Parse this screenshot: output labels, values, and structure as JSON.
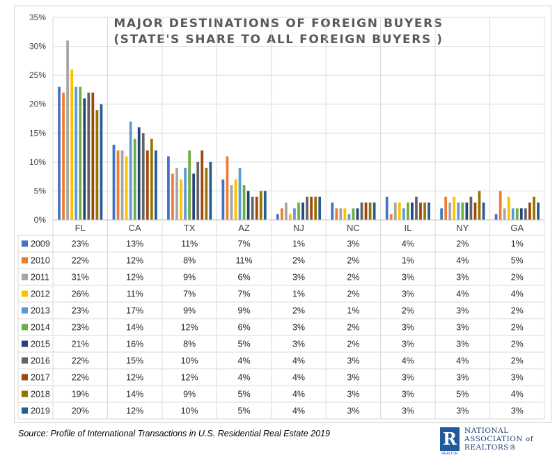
{
  "chart_data": {
    "type": "bar",
    "title": "MAJOR DESTINATIONS OF FOREIGN BUYERS",
    "subtitle": "(STATE'S SHARE TO ALL FOREIGN BUYERS )",
    "categories": [
      "FL",
      "CA",
      "TX",
      "AZ",
      "NJ",
      "NC",
      "IL",
      "NY",
      "GA"
    ],
    "y_ticks": [
      "0%",
      "5%",
      "10%",
      "15%",
      "20%",
      "25%",
      "30%",
      "35%"
    ],
    "ylim": [
      0,
      35
    ],
    "legend_placement": "data-table-left",
    "series": [
      {
        "name": "2009",
        "color": "#4472c4",
        "values": [
          23,
          13,
          11,
          7,
          1,
          3,
          4,
          2,
          1
        ]
      },
      {
        "name": "2010",
        "color": "#ed7d31",
        "values": [
          22,
          12,
          8,
          11,
          2,
          2,
          1,
          4,
          5
        ]
      },
      {
        "name": "2011",
        "color": "#a5a5a5",
        "values": [
          31,
          12,
          9,
          6,
          3,
          2,
          3,
          3,
          2
        ]
      },
      {
        "name": "2012",
        "color": "#ffc000",
        "values": [
          26,
          11,
          7,
          7,
          1,
          2,
          3,
          4,
          4
        ]
      },
      {
        "name": "2013",
        "color": "#5b9bd5",
        "values": [
          23,
          17,
          9,
          9,
          2,
          1,
          2,
          3,
          2
        ]
      },
      {
        "name": "2014",
        "color": "#70ad47",
        "values": [
          23,
          14,
          12,
          6,
          3,
          2,
          3,
          3,
          2
        ]
      },
      {
        "name": "2015",
        "color": "#264478",
        "values": [
          21,
          16,
          8,
          5,
          3,
          2,
          3,
          3,
          2
        ]
      },
      {
        "name": "2016",
        "color": "#636363",
        "values": [
          22,
          15,
          10,
          4,
          4,
          3,
          4,
          4,
          2
        ]
      },
      {
        "name": "2017",
        "color": "#9e480e",
        "values": [
          22,
          12,
          12,
          4,
          4,
          3,
          3,
          3,
          3
        ]
      },
      {
        "name": "2018",
        "color": "#997300",
        "values": [
          19,
          14,
          9,
          5,
          4,
          3,
          3,
          5,
          4
        ]
      },
      {
        "name": "2019",
        "color": "#255e91",
        "values": [
          20,
          12,
          10,
          5,
          4,
          3,
          3,
          3,
          3
        ]
      }
    ],
    "value_suffix": "%"
  },
  "source": "Source: Profile of International Transactions in U.S. Residential Real Estate 2019",
  "logo": {
    "mark_letter": "R",
    "mark_caption": "REALTOR",
    "line1": "NATIONAL",
    "line2": "ASSOCIATION of",
    "line3": "REALTORS®"
  }
}
